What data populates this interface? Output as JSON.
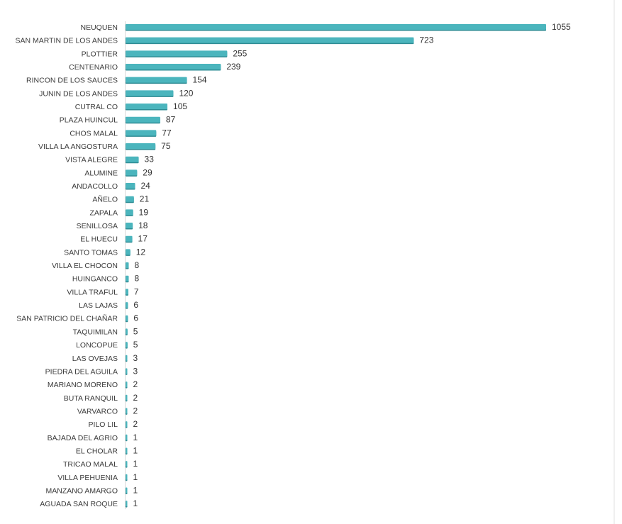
{
  "chart_data": {
    "type": "bar",
    "orientation": "horizontal",
    "title": "",
    "xlabel": "",
    "ylabel": "",
    "xlim": [
      0,
      1055
    ],
    "grid": false,
    "legend": "none",
    "colors": {
      "bar": "#4bb5bd",
      "bar_shadow": "#2f8c94"
    },
    "categories": [
      "NEUQUEN",
      "SAN MARTIN DE LOS ANDES",
      "PLOTTIER",
      "CENTENARIO",
      "RINCON DE LOS SAUCES",
      "JUNIN DE LOS ANDES",
      "CUTRAL CO",
      "PLAZA HUINCUL",
      "CHOS MALAL",
      "VILLA LA ANGOSTURA",
      "VISTA ALEGRE",
      "ALUMINE",
      "ANDACOLLO",
      "AÑELO",
      "ZAPALA",
      "SENILLOSA",
      "EL HUECU",
      "SANTO TOMAS",
      "VILLA EL CHOCON",
      "HUINGANCO",
      "VILLA TRAFUL",
      "LAS LAJAS",
      "SAN PATRICIO DEL CHAÑAR",
      "TAQUIMILAN",
      "LONCOPUE",
      "LAS OVEJAS",
      "PIEDRA DEL AGUILA",
      "MARIANO MORENO",
      "BUTA RANQUIL",
      "VARVARCO",
      "PILO LIL",
      "BAJADA DEL AGRIO",
      "EL CHOLAR",
      "TRICAO MALAL",
      "VILLA PEHUENIA",
      "MANZANO AMARGO",
      "AGUADA SAN ROQUE"
    ],
    "values": [
      1055,
      723,
      255,
      239,
      154,
      120,
      105,
      87,
      77,
      75,
      33,
      29,
      24,
      21,
      19,
      18,
      17,
      12,
      8,
      8,
      7,
      6,
      6,
      5,
      5,
      3,
      3,
      2,
      2,
      2,
      2,
      1,
      1,
      1,
      1,
      1,
      1
    ]
  }
}
